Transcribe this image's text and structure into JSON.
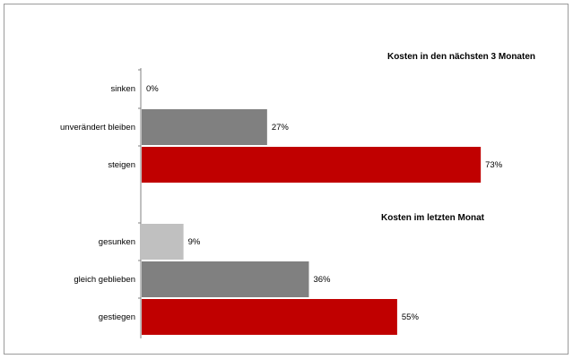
{
  "chart_data": [
    {
      "type": "bar",
      "orientation": "horizontal",
      "title": "Kosten in den nächsten 3 Monaten",
      "categories": [
        "sinken",
        "unverändert bleiben",
        "steigen"
      ],
      "values": [
        0,
        27,
        73
      ],
      "value_labels": [
        "0%",
        "27%",
        "73%"
      ],
      "colors": [
        "#808080",
        "#808080",
        "#c00000"
      ],
      "unit": "%"
    },
    {
      "type": "bar",
      "orientation": "horizontal",
      "title": "Kosten im letzten Monat",
      "categories": [
        "gesunken",
        "gleich geblieben",
        "gestiegen"
      ],
      "values": [
        9,
        36,
        55
      ],
      "value_labels": [
        "9%",
        "36%",
        "55%"
      ],
      "colors": [
        "#c0c0c0",
        "#808080",
        "#c00000"
      ],
      "unit": "%"
    }
  ]
}
